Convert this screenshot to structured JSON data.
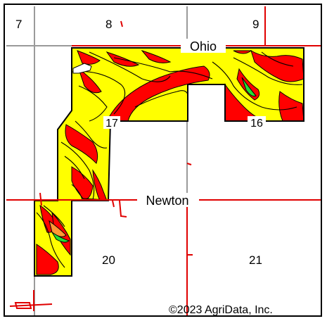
{
  "map": {
    "section_labels": {
      "s7": "7",
      "s8": "8",
      "s9": "9",
      "s16": "16",
      "s17": "17",
      "s20": "20",
      "s21": "21"
    },
    "road_labels": {
      "ohio": "Ohio",
      "newton": "Newton"
    },
    "copyright": "©2023 AgriData, Inc.",
    "colors": {
      "field_yellow": "#ffff00",
      "slope_red": "#ff0000",
      "slope_orange": "#ff9933",
      "slope_green": "#22dd33",
      "road_red": "#e00000",
      "section_grey": "#9a9a9a",
      "contour_black": "#000000"
    }
  }
}
